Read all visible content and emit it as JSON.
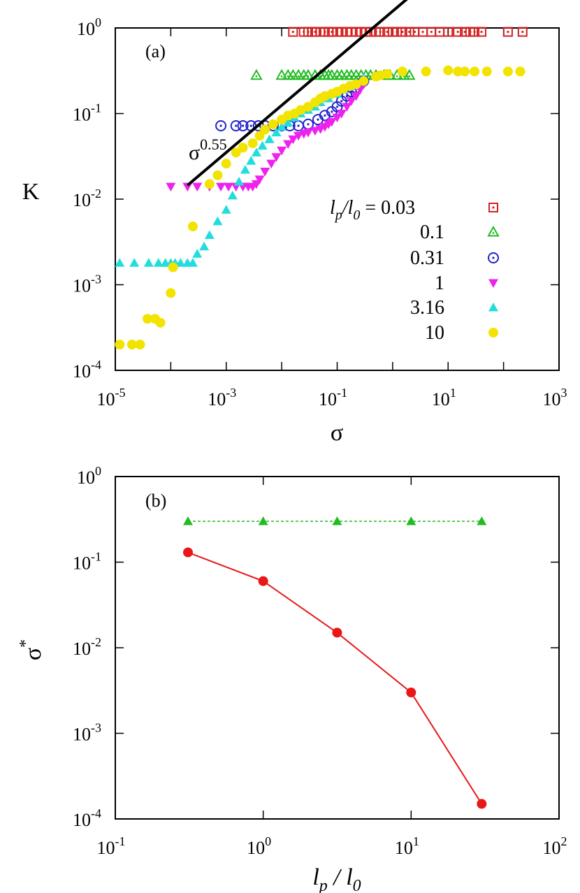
{
  "chart_data": [
    {
      "panel": "(a)",
      "type": "scatter",
      "xscale": "log",
      "yscale": "log",
      "xlim": [
        1e-05,
        1000
      ],
      "ylim": [
        0.0001,
        1
      ],
      "xlabel": "σ",
      "ylabel": "K",
      "xticks": [
        {
          "base": "10",
          "exp": "-5"
        },
        {
          "base": "10",
          "exp": "-3"
        },
        {
          "base": "10",
          "exp": "-1"
        },
        {
          "base": "10",
          "exp": "1"
        },
        {
          "base": "10",
          "exp": "3"
        }
      ],
      "xtick_values": [
        1e-05,
        0.001,
        0.1,
        10,
        1000
      ],
      "yticks": [
        {
          "base": "10",
          "exp": "0"
        },
        {
          "base": "10",
          "exp": "-1"
        },
        {
          "base": "10",
          "exp": "-2"
        },
        {
          "base": "10",
          "exp": "-3"
        },
        {
          "base": "10",
          "exp": "-4"
        }
      ],
      "ytick_values": [
        1,
        0.1,
        0.01,
        0.001,
        0.0001
      ],
      "legend_title": "l_p/l_0 =",
      "legend_title_parts": {
        "l1": "l",
        "s1": "p",
        "slash": "/",
        "l2": "l",
        "s2": "0",
        "eq": " = "
      },
      "series": [
        {
          "name": "0.03",
          "marker": "square-dot",
          "color": "#d42020",
          "x": [
            0.016,
            0.025,
            0.03,
            0.035,
            0.04,
            0.05,
            0.06,
            0.07,
            0.08,
            0.1,
            0.12,
            0.15,
            0.18,
            0.22,
            0.27,
            0.33,
            0.4,
            0.5,
            0.6,
            0.8,
            1.0,
            1.2,
            1.5,
            2.0,
            2.5,
            3.5,
            5,
            7,
            10,
            15,
            20,
            25,
            30,
            40,
            120,
            220
          ],
          "y": [
            0.9,
            0.9,
            0.9,
            0.9,
            0.9,
            0.9,
            0.9,
            0.9,
            0.9,
            0.9,
            0.9,
            0.9,
            0.9,
            0.9,
            0.9,
            0.9,
            0.9,
            0.9,
            0.9,
            0.9,
            0.9,
            0.9,
            0.9,
            0.9,
            0.9,
            0.9,
            0.9,
            0.9,
            0.9,
            0.9,
            0.9,
            0.9,
            0.9,
            0.9,
            0.9,
            0.9
          ]
        },
        {
          "name": "0.1",
          "marker": "triangle-up-open",
          "color": "#22bb22",
          "x": [
            0.0035,
            0.01,
            0.013,
            0.016,
            0.02,
            0.025,
            0.03,
            0.04,
            0.05,
            0.06,
            0.07,
            0.08,
            0.1,
            0.12,
            0.15,
            0.18,
            0.22,
            0.27,
            0.33,
            0.4,
            0.5,
            0.7,
            0.9,
            1.2,
            1.6,
            2.0
          ],
          "y": [
            0.28,
            0.28,
            0.28,
            0.28,
            0.28,
            0.28,
            0.28,
            0.28,
            0.28,
            0.28,
            0.28,
            0.28,
            0.28,
            0.28,
            0.28,
            0.28,
            0.28,
            0.28,
            0.28,
            0.28,
            0.28,
            0.28,
            0.28,
            0.28,
            0.28,
            0.28
          ]
        },
        {
          "name": "0.31",
          "marker": "circle-dot",
          "color": "#2222cc",
          "x": [
            0.0008,
            0.0015,
            0.002,
            0.0028,
            0.0038,
            0.005,
            0.007,
            0.01,
            0.014,
            0.02,
            0.03,
            0.045,
            0.06,
            0.08,
            0.1,
            0.12,
            0.15,
            0.18,
            0.22,
            0.26,
            0.3
          ],
          "y": [
            0.072,
            0.072,
            0.072,
            0.072,
            0.072,
            0.072,
            0.072,
            0.072,
            0.072,
            0.072,
            0.075,
            0.085,
            0.095,
            0.105,
            0.12,
            0.14,
            0.16,
            0.18,
            0.2,
            0.22,
            0.24
          ]
        },
        {
          "name": "1",
          "marker": "triangle-down-filled",
          "color": "#ee22ee",
          "x": [
            0.0001,
            0.0002,
            0.0003,
            0.0005,
            0.0008,
            0.0011,
            0.0015,
            0.002,
            0.0025,
            0.003,
            0.0035,
            0.004,
            0.005,
            0.0065,
            0.008,
            0.01,
            0.013,
            0.016,
            0.02,
            0.025,
            0.03,
            0.04,
            0.05,
            0.06,
            0.07,
            0.08,
            0.1,
            0.12,
            0.15,
            0.18,
            0.22,
            0.26,
            0.3
          ],
          "y": [
            0.014,
            0.014,
            0.014,
            0.014,
            0.014,
            0.014,
            0.014,
            0.014,
            0.014,
            0.014,
            0.015,
            0.017,
            0.021,
            0.026,
            0.031,
            0.037,
            0.044,
            0.05,
            0.055,
            0.058,
            0.06,
            0.063,
            0.066,
            0.07,
            0.075,
            0.08,
            0.09,
            0.1,
            0.12,
            0.14,
            0.16,
            0.19,
            0.22
          ]
        },
        {
          "name": "3.16",
          "marker": "triangle-up-filled",
          "color": "#22dddd",
          "x": [
            1.2e-05,
            2.2e-05,
            4e-05,
            6e-05,
            8e-05,
            0.0001,
            0.00012,
            0.00015,
            0.0002,
            0.00025,
            0.0003,
            0.0004,
            0.0005,
            0.0007,
            0.001,
            0.0013,
            0.0017,
            0.0022,
            0.0028,
            0.0035,
            0.0045,
            0.006,
            0.008,
            0.01,
            0.013,
            0.017,
            0.022,
            0.03,
            0.04,
            0.05,
            0.07,
            0.1,
            0.13,
            0.17,
            0.22,
            0.3
          ],
          "y": [
            0.0018,
            0.0018,
            0.0018,
            0.0018,
            0.0018,
            0.0018,
            0.0018,
            0.0018,
            0.0018,
            0.0018,
            0.0023,
            0.0028,
            0.0038,
            0.0055,
            0.0075,
            0.011,
            0.016,
            0.022,
            0.028,
            0.035,
            0.042,
            0.05,
            0.06,
            0.07,
            0.078,
            0.09,
            0.1,
            0.11,
            0.12,
            0.135,
            0.15,
            0.17,
            0.19,
            0.21,
            0.23,
            0.26
          ]
        },
        {
          "name": "10",
          "marker": "circle-filled",
          "color": "#f2e400",
          "x": [
            1.2e-05,
            2e-05,
            2.8e-05,
            3.8e-05,
            5.2e-05,
            6.5e-05,
            0.0001,
            0.00011,
            0.00025,
            0.0005,
            0.0007,
            0.001,
            0.0015,
            0.002,
            0.003,
            0.004,
            0.005,
            0.007,
            0.01,
            0.013,
            0.017,
            0.022,
            0.03,
            0.04,
            0.05,
            0.06,
            0.08,
            0.1,
            0.13,
            0.17,
            0.22,
            0.3,
            0.5,
            0.6,
            0.8,
            1.5,
            4,
            10,
            15,
            20,
            30,
            50,
            120,
            200
          ],
          "y": [
            0.0002,
            0.0002,
            0.0002,
            0.0004,
            0.0004,
            0.00036,
            0.0008,
            0.0016,
            0.0048,
            0.015,
            0.019,
            0.026,
            0.035,
            0.04,
            0.045,
            0.055,
            0.065,
            0.075,
            0.085,
            0.095,
            0.1,
            0.11,
            0.12,
            0.135,
            0.15,
            0.16,
            0.17,
            0.18,
            0.195,
            0.21,
            0.22,
            0.24,
            0.27,
            0.28,
            0.29,
            0.31,
            0.31,
            0.32,
            0.31,
            0.31,
            0.31,
            0.31,
            0.31,
            0.31
          ]
        }
      ],
      "annotation": {
        "base": "σ",
        "exp": "0.55",
        "x0": 0.0002,
        "x1": 1.9,
        "y0": 0.0145,
        "slope": 0.55
      }
    },
    {
      "panel": "(b)",
      "type": "line",
      "xscale": "log",
      "yscale": "log",
      "xlim": [
        0.1,
        100
      ],
      "ylim": [
        0.0001,
        1
      ],
      "xlabel_parts": {
        "l1": "l",
        "s1": "p",
        "slash": " / ",
        "l2": "l",
        "s2": "0"
      },
      "ylabel_parts": {
        "base": "σ",
        "exp": "*"
      },
      "xticks": [
        {
          "base": "10",
          "exp": "-1"
        },
        {
          "base": "10",
          "exp": "0"
        },
        {
          "base": "10",
          "exp": "1"
        },
        {
          "base": "10",
          "exp": "2"
        }
      ],
      "xtick_values": [
        0.1,
        1,
        10,
        100
      ],
      "yticks": [
        {
          "base": "10",
          "exp": "0"
        },
        {
          "base": "10",
          "exp": "-1"
        },
        {
          "base": "10",
          "exp": "-2"
        },
        {
          "base": "10",
          "exp": "-3"
        },
        {
          "base": "10",
          "exp": "-4"
        }
      ],
      "ytick_values": [
        1,
        0.1,
        0.01,
        0.001,
        0.0001
      ],
      "series": [
        {
          "name": "green",
          "marker": "triangle-up-filled",
          "color": "#22bb22",
          "line": "dashed",
          "x": [
            0.31,
            1,
            3.16,
            10,
            30
          ],
          "y": [
            0.3,
            0.3,
            0.3,
            0.3,
            0.3
          ]
        },
        {
          "name": "red",
          "marker": "circle-filled",
          "color": "#e81818",
          "line": "solid",
          "x": [
            0.31,
            1,
            3.16,
            10,
            30
          ],
          "y": [
            0.13,
            0.06,
            0.015,
            0.003,
            0.00015
          ]
        }
      ]
    }
  ]
}
